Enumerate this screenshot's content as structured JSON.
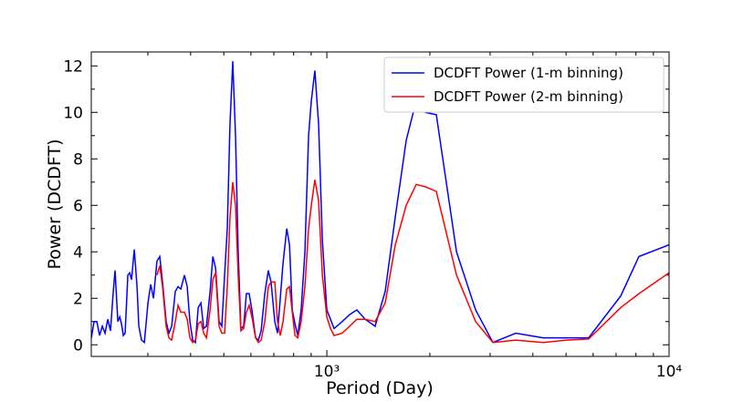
{
  "chart_data": {
    "type": "line",
    "xlabel": "Period (Day)",
    "ylabel": "Power (DCDFT)",
    "xscale": "log",
    "xlim": [
      205,
      10000
    ],
    "ylim": [
      -0.5,
      12.6
    ],
    "xticks": [
      {
        "value": 1000,
        "label": "10³"
      },
      {
        "value": 10000,
        "label": "10⁴"
      }
    ],
    "xminorticks": [
      300,
      400,
      500,
      600,
      700,
      800,
      900,
      2000,
      3000,
      4000,
      5000,
      6000,
      7000,
      8000,
      9000
    ],
    "yticks": [
      0,
      2,
      4,
      6,
      8,
      10,
      12
    ],
    "yminorticks": [
      1,
      3,
      5,
      7,
      9,
      11
    ],
    "legend": "upper right",
    "x": [
      205.1,
      208.9,
      212.8,
      216.8,
      220.8,
      224.9,
      229.1,
      233.3,
      237.7,
      240.6,
      245.1,
      248.3,
      251.2,
      254.3,
      257.4,
      262.2,
      265.5,
      268.8,
      273.8,
      278.9,
      282.3,
      287.5,
      293.0,
      300.2,
      305.8,
      311.5,
      318.9,
      325.0,
      331.1,
      339.3,
      345.6,
      352.1,
      360.8,
      367.6,
      374.5,
      383.7,
      390.9,
      398.1,
      405.6,
      413.1,
      420.9,
      428.7,
      436.8,
      444.9,
      456.0,
      464.5,
      473.2,
      484.4,
      493.4,
      502.7,
      511.9,
      521.3,
      531.1,
      541.0,
      550.8,
      561.0,
      571.5,
      582.1,
      593.0,
      604.0,
      619.4,
      631.0,
      642.7,
      658.9,
      674.5,
      687.1,
      704.7,
      717.8,
      731.1,
      744.7,
      763.8,
      778.0,
      792.5,
      807.2,
      822.2,
      841.4,
      862.9,
      884.5,
      901.0,
      922.6,
      946.2,
      970.4,
      1000,
      1025,
      1050,
      1109,
      1166,
      1224,
      1294,
      1384,
      1481,
      1585,
      1706,
      1825,
      1941,
      2089,
      2393,
      2721,
      3057,
      3565,
      4285,
      5000,
      5821,
      7223,
      8166,
      10000
    ],
    "series": [
      {
        "name": "DCDFT Power (1-m binning)",
        "color": "#0000ff",
        "values": [
          0.3,
          1.0,
          1.0,
          0.4,
          0.8,
          0.5,
          1.1,
          0.6,
          2.3,
          3.2,
          1.0,
          1.2,
          0.9,
          0.4,
          0.5,
          3.0,
          3.1,
          2.8,
          4.1,
          2.5,
          0.8,
          0.2,
          0.1,
          1.8,
          2.6,
          2.0,
          3.6,
          3.8,
          2.7,
          1.0,
          0.5,
          0.8,
          2.3,
          2.5,
          2.4,
          3.0,
          2.5,
          1.0,
          0.2,
          0.1,
          1.6,
          1.8,
          0.7,
          0.8,
          2.3,
          3.8,
          3.3,
          1.0,
          0.8,
          3.0,
          5.0,
          9.5,
          12.2,
          9.0,
          4.0,
          0.7,
          0.8,
          2.2,
          2.2,
          1.5,
          0.3,
          0.2,
          0.6,
          2.2,
          3.2,
          2.7,
          1.0,
          0.5,
          2.0,
          3.5,
          5.0,
          4.3,
          1.5,
          0.9,
          0.4,
          1.5,
          4.0,
          9.0,
          10.5,
          11.8,
          9.5,
          4.5,
          1.5,
          1.1,
          0.7,
          1.0,
          1.3,
          1.5,
          1.1,
          0.8,
          2.3,
          5.5,
          8.8,
          10.5,
          10.0,
          9.9,
          4.0,
          1.5,
          0.1,
          0.5,
          0.3,
          0.3,
          0.3,
          2.1,
          3.8,
          4.3
        ]
      },
      {
        "name": "DCDFT Power (2-m binning)",
        "color": "#ff0000",
        "values": [
          null,
          null,
          null,
          null,
          null,
          null,
          null,
          null,
          null,
          null,
          null,
          null,
          null,
          null,
          null,
          null,
          null,
          null,
          null,
          null,
          null,
          null,
          null,
          null,
          null,
          null,
          3.0,
          3.4,
          2.5,
          0.8,
          0.3,
          0.2,
          1.0,
          1.7,
          1.4,
          1.4,
          1.1,
          0.3,
          0.1,
          0.2,
          0.9,
          1.0,
          0.5,
          0.3,
          1.5,
          2.8,
          3.1,
          0.8,
          0.5,
          0.5,
          2.5,
          5.5,
          7.0,
          6.0,
          3.0,
          0.6,
          0.7,
          1.4,
          1.7,
          1.2,
          0.3,
          0.1,
          0.2,
          1.0,
          2.5,
          2.7,
          2.7,
          1.0,
          0.4,
          1.0,
          2.4,
          2.5,
          1.4,
          0.4,
          0.3,
          1.0,
          2.5,
          5.0,
          6.0,
          7.1,
          6.2,
          3.0,
          1.2,
          0.7,
          0.4,
          0.5,
          0.8,
          1.1,
          1.1,
          1.0,
          1.8,
          4.3,
          6.0,
          6.9,
          6.8,
          6.6,
          3.0,
          1.0,
          0.1,
          0.2,
          0.1,
          0.2,
          0.25,
          1.6,
          2.2,
          3.1
        ]
      }
    ]
  }
}
